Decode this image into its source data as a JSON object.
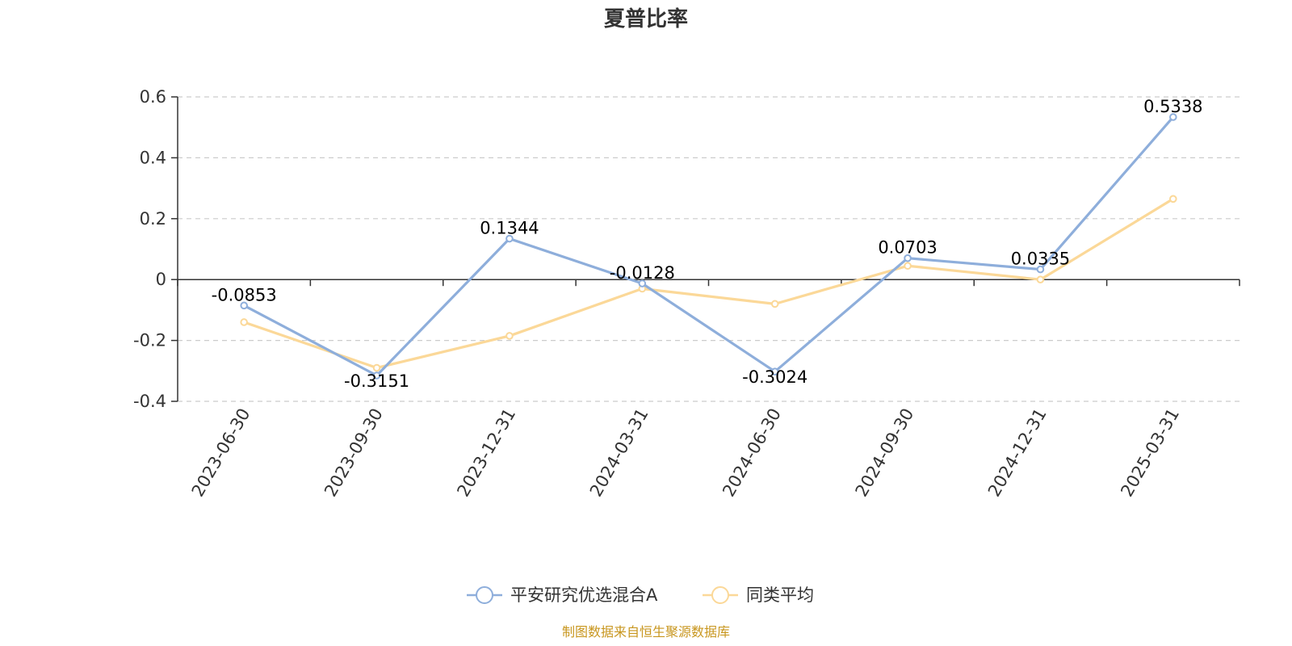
{
  "chart_data": {
    "type": "line",
    "title": "夏普比率",
    "categories": [
      "2023-06-30",
      "2023-09-30",
      "2023-12-31",
      "2024-03-31",
      "2024-06-30",
      "2024-09-30",
      "2024-12-31",
      "2025-03-31"
    ],
    "series": [
      {
        "name": "平安研究优选混合A",
        "color": "#8eaedb",
        "values": [
          -0.0853,
          -0.3151,
          0.1344,
          -0.0128,
          -0.3024,
          0.0703,
          0.0335,
          0.5338
        ],
        "labels": [
          "-0.0853",
          "-0.3151",
          "0.1344",
          "-0.0128",
          "-0.3024",
          "0.0703",
          "0.0335",
          "0.5338"
        ]
      },
      {
        "name": "同类平均",
        "color": "#fbd898",
        "values": [
          -0.14,
          -0.29,
          -0.185,
          -0.03,
          -0.08,
          0.045,
          0.0,
          0.265
        ]
      }
    ],
    "ylim": [
      -0.4,
      0.6
    ],
    "yticks": [
      0.6,
      0.4,
      0.2,
      0,
      -0.2,
      -0.4
    ],
    "ytick_labels": [
      "0.6",
      "0.4",
      "0.2",
      "0",
      "-0.2",
      "-0.4"
    ],
    "grid": true,
    "legend_position": "bottom-center",
    "source_note": "制图数据来自恒生聚源数据库",
    "source_color": "#c8961e",
    "axis_color": "#333333",
    "grid_color": "#cccccc"
  }
}
